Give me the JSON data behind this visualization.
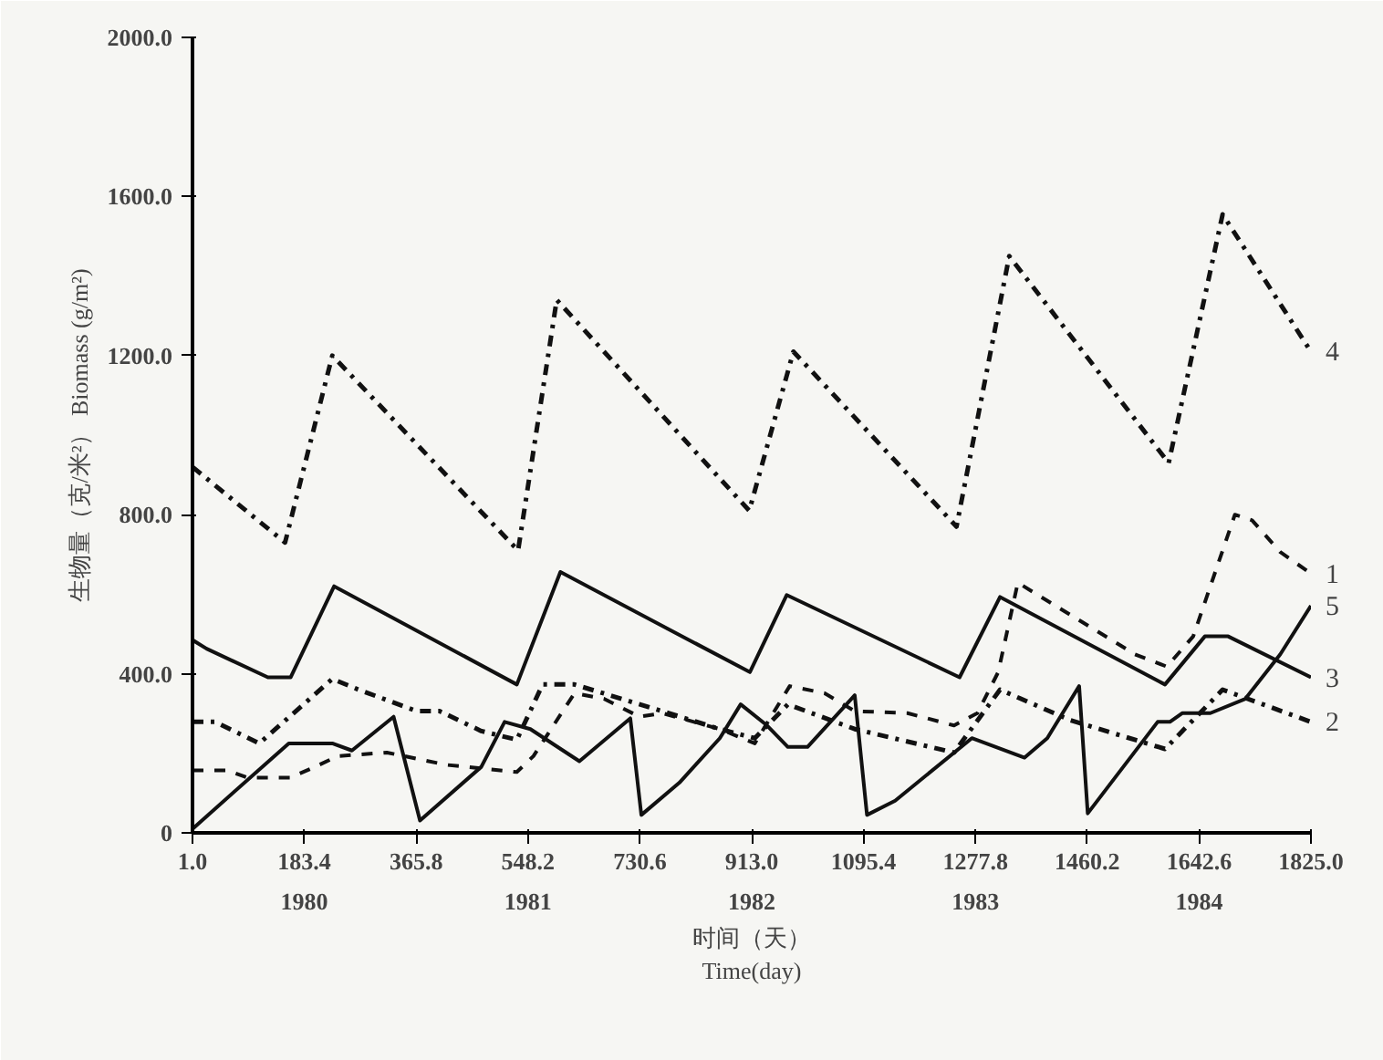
{
  "chart_data": {
    "type": "line",
    "xlabel": "时间（天）\nTime(day)",
    "ylabel": "生物量（克/米²） Biomass (g/m²)",
    "xlim": [
      1,
      1825
    ],
    "ylim": [
      0,
      2000
    ],
    "xticks": [
      {
        "value": 1,
        "label": "1.0"
      },
      183.4,
      365.8,
      548.2,
      730.6,
      {
        "value": 913,
        "label": "913.0"
      },
      1095.4,
      1277.8,
      1460.2,
      1642.6,
      {
        "value": 1825,
        "label": "1825.0"
      }
    ],
    "yticks": [
      0,
      {
        "value": 400,
        "label": "400.0"
      },
      {
        "value": 800,
        "label": "800.0"
      },
      {
        "value": 1200,
        "label": "1200.0"
      },
      {
        "value": 1600,
        "label": "1600.0"
      },
      {
        "value": 2000,
        "label": "2000.0"
      }
    ],
    "grid": false,
    "marker": "none",
    "annotations": [
      "1980",
      "1981",
      "1982",
      "1983",
      "1984"
    ],
    "series": [
      {
        "name": "1",
        "color": "#111111",
        "line_style": "dashed",
        "x": [
          1,
          58,
          90,
          161,
          195,
          238,
          318,
          415,
          472,
          530,
          557,
          624,
          672,
          730,
          767,
          861,
          918,
          975,
          1032,
          1081,
          1167,
          1243,
          1281,
          1315,
          1347,
          1538,
          1590,
          1633,
          1701,
          1729,
          1775,
          1825
        ],
        "values": [
          157,
          157,
          139,
          139,
          162,
          193,
          202,
          171,
          162,
          153,
          193,
          351,
          337,
          292,
          301,
          261,
          225,
          369,
          351,
          306,
          301,
          270,
          301,
          404,
          629,
          449,
          418,
          494,
          800,
          786,
          706,
          652
        ]
      },
      {
        "name": "2",
        "color": "#111111",
        "line_style": "dashdot",
        "x": [
          1,
          38,
          110,
          229,
          272,
          367,
          404,
          472,
          530,
          572,
          624,
          767,
          861,
          918,
          972,
          1081,
          1243,
          1318,
          1433,
          1587,
          1681,
          1825
        ],
        "values": [
          279,
          279,
          225,
          387,
          360,
          306,
          306,
          256,
          234,
          373,
          373,
          306,
          261,
          238,
          323,
          261,
          202,
          360,
          283,
          211,
          360,
          279
        ]
      },
      {
        "name": "3",
        "color": "#111111",
        "line_style": "solid",
        "x": [
          1,
          24,
          124,
          161,
          232,
          530,
          601,
          910,
          970,
          1252,
          1318,
          1587,
          1652,
          1690,
          1825
        ],
        "values": [
          485,
          463,
          391,
          391,
          620,
          373,
          656,
          404,
          598,
          391,
          593,
          373,
          494,
          494,
          391
        ]
      },
      {
        "name": "4",
        "color": "#111111",
        "line_style": "dashdot",
        "x": [
          1,
          152,
          229,
          532,
          595,
          909,
          981,
          1247,
          1333,
          1593,
          1681,
          1825
        ],
        "values": [
          920,
          730,
          1200,
          710,
          1340,
          810,
          1210,
          770,
          1450,
          930,
          1555,
          1210
        ]
      },
      {
        "name": "5",
        "color": "#111111",
        "line_style": "solid",
        "x": [
          1,
          158,
          229,
          261,
          329,
          372,
          472,
          510,
          552,
          632,
          715,
          733,
          795,
          861,
          895,
          938,
          972,
          1004,
          1081,
          1101,
          1147,
          1272,
          1358,
          1395,
          1447,
          1461,
          1575,
          1595,
          1615,
          1661,
          1718,
          1775,
          1825
        ],
        "values": [
          10,
          225,
          225,
          207,
          292,
          31,
          166,
          279,
          261,
          180,
          288,
          45,
          126,
          238,
          323,
          270,
          216,
          216,
          346,
          45,
          81,
          238,
          189,
          238,
          369,
          49,
          279,
          279,
          301,
          301,
          337,
          449,
          571
        ]
      }
    ]
  }
}
